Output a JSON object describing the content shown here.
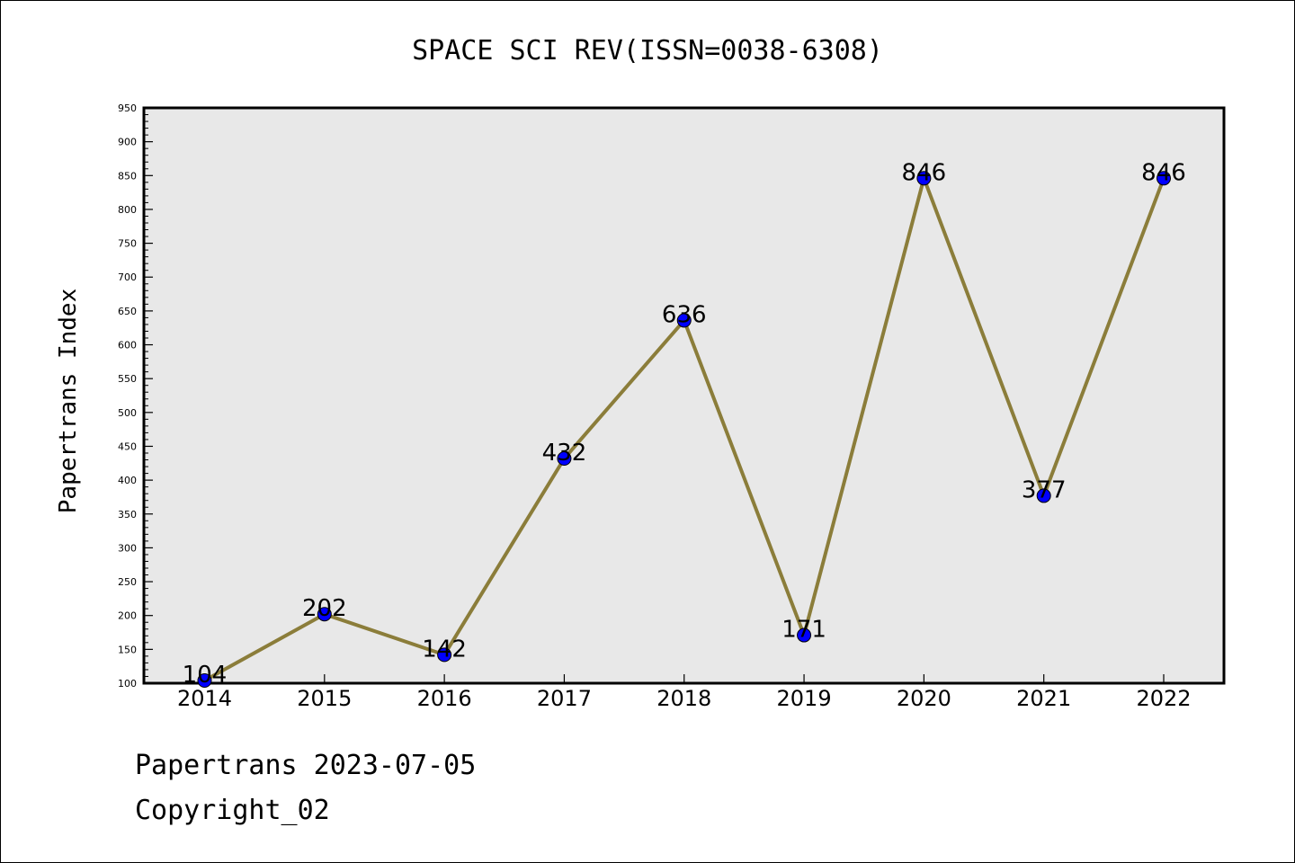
{
  "chart_data": {
    "type": "line",
    "title": "SPACE SCI REV(ISSN=0038-6308)",
    "xlabel": "",
    "ylabel": "Papertrans Index",
    "categories": [
      "2014",
      "2015",
      "2016",
      "2017",
      "2018",
      "2019",
      "2020",
      "2021",
      "2022"
    ],
    "series": [
      {
        "values": [
          104,
          202,
          142,
          432,
          636,
          171,
          846,
          377,
          846
        ],
        "data_labels": [
          "104",
          "202",
          "142",
          "432",
          "636",
          "171",
          "846",
          "377",
          "846"
        ],
        "line_color": "#8b7d3a",
        "marker_color": "#0000ff"
      }
    ],
    "ylim": [
      100,
      950
    ],
    "y_ticks": [
      100,
      150,
      200,
      250,
      300,
      350,
      400,
      450,
      500,
      550,
      600,
      650,
      700,
      750,
      800,
      850,
      900,
      950
    ],
    "y_tick_labels": [
      "100",
      "150",
      "200",
      "250",
      "300",
      "350",
      "400",
      "450",
      "500",
      "550",
      "600",
      "650",
      "700",
      "750",
      "800",
      "850",
      "900",
      "950"
    ],
    "grid": false,
    "plot_background": "#e8e8e8"
  },
  "footer": {
    "line1": "Papertrans 2023-07-05",
    "line2": "Copyright_02"
  }
}
